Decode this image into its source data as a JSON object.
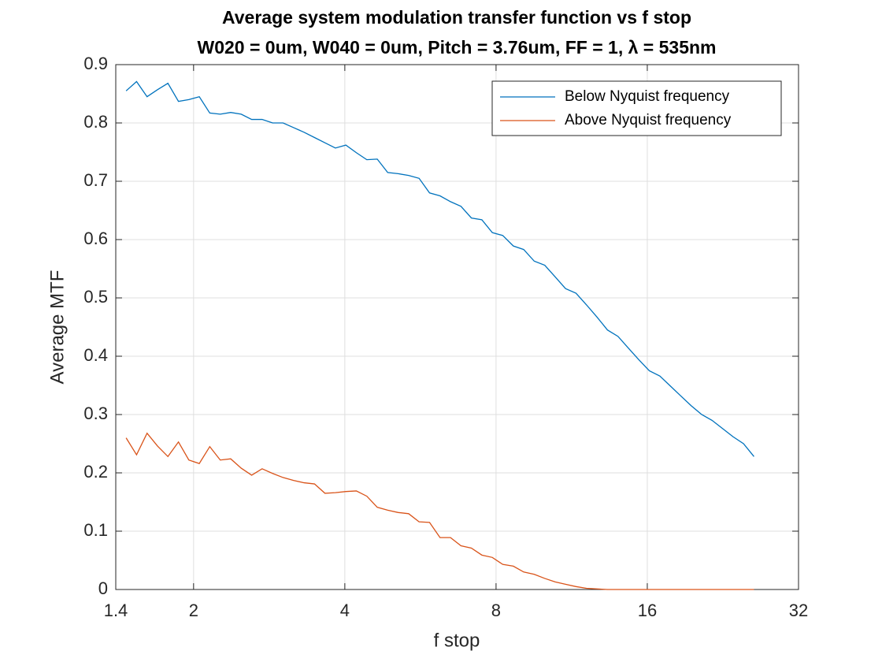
{
  "chart_data": {
    "type": "line",
    "title": [
      "Average system modulation transfer function vs f stop",
      "W020 = 0um, W040 = 0um, Pitch = 3.76um, FF = 1, λ = 535nm"
    ],
    "xlabel": "f stop",
    "ylabel": "Average MTF",
    "x": [
      1.468,
      1.54,
      1.616,
      1.695,
      1.778,
      1.866,
      1.957,
      2.053,
      2.154,
      2.26,
      2.371,
      2.488,
      2.61,
      2.738,
      2.873,
      3.014,
      3.163,
      3.318,
      3.481,
      3.652,
      3.831,
      4.019,
      4.217,
      4.424,
      4.641,
      4.869,
      5.108,
      5.359,
      5.622,
      5.898,
      6.188,
      6.492,
      6.811,
      7.145,
      7.496,
      7.864,
      8.25,
      8.66,
      9.08,
      9.53,
      10.0,
      10.49,
      11.0,
      11.54,
      12.11,
      12.71,
      13.33,
      13.99,
      14.67,
      15.39,
      16.15,
      16.95,
      17.78,
      18.65,
      19.57,
      20.53,
      21.53,
      22.59,
      23.7,
      24.87,
      26.09
    ],
    "series": [
      {
        "name": "Below Nyquist frequency",
        "color": "#0072bd",
        "values": [
          0.855,
          0.871,
          0.845,
          0.857,
          0.868,
          0.837,
          0.84,
          0.845,
          0.817,
          0.815,
          0.818,
          0.815,
          0.806,
          0.806,
          0.8,
          0.8,
          0.792,
          0.784,
          0.775,
          0.766,
          0.757,
          0.762,
          0.749,
          0.737,
          0.738,
          0.715,
          0.713,
          0.71,
          0.705,
          0.68,
          0.675,
          0.665,
          0.657,
          0.637,
          0.634,
          0.612,
          0.607,
          0.589,
          0.583,
          0.563,
          0.556,
          0.536,
          0.516,
          0.508,
          0.488,
          0.467,
          0.445,
          0.434,
          0.414,
          0.394,
          0.375,
          0.366,
          0.349,
          0.332,
          0.315,
          0.3,
          0.29,
          0.276,
          0.262,
          0.25,
          0.228
        ]
      },
      {
        "name": "Above Nyquist frequency",
        "color": "#d95319",
        "values": [
          0.26,
          0.231,
          0.268,
          0.246,
          0.228,
          0.253,
          0.222,
          0.216,
          0.245,
          0.222,
          0.224,
          0.208,
          0.196,
          0.207,
          0.199,
          0.192,
          0.187,
          0.183,
          0.181,
          0.165,
          0.166,
          0.168,
          0.169,
          0.16,
          0.141,
          0.136,
          0.132,
          0.13,
          0.116,
          0.115,
          0.089,
          0.089,
          0.075,
          0.071,
          0.059,
          0.055,
          0.043,
          0.04,
          0.03,
          0.026,
          0.019,
          0.013,
          0.009,
          0.005,
          0.002,
          0.001,
          0,
          0,
          0,
          0,
          0,
          0,
          0,
          0,
          0,
          0,
          0,
          0,
          0,
          0,
          0
        ]
      }
    ],
    "xlim": [
      1.4,
      32
    ],
    "xticks": [
      1.4,
      2,
      4,
      8,
      16,
      32
    ],
    "xscale": "log",
    "ylim": [
      0,
      0.9
    ],
    "yticks": [
      0,
      0.1,
      0.2,
      0.3,
      0.4,
      0.5,
      0.6,
      0.7,
      0.8,
      0.9
    ],
    "grid": true,
    "legend": "northeast"
  }
}
